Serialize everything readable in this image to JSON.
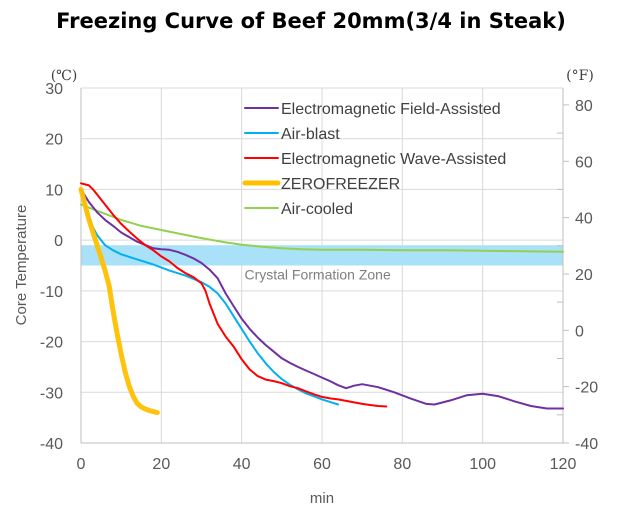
{
  "chart_data": {
    "type": "line",
    "title": "Freezing Curve of Beef 20mm(3/4 in Steak)",
    "xlabel": "min",
    "ylabel": "Core Temperature",
    "y_unit_left": "(℃)",
    "y_unit_right": "(°F)",
    "xlim": [
      0,
      120
    ],
    "ylim": [
      -40,
      30
    ],
    "y2lim": [
      -40,
      86
    ],
    "x_ticks": [
      "0",
      "20",
      "40",
      "60",
      "80",
      "100",
      "120"
    ],
    "x_tick_values": [
      0,
      20,
      40,
      60,
      80,
      100,
      120
    ],
    "y_ticks": [
      "30",
      "20",
      "10",
      "0",
      "-10",
      "-20",
      "-30",
      "-40"
    ],
    "y_tick_values": [
      30,
      20,
      10,
      0,
      -10,
      -20,
      -30,
      -40
    ],
    "y2_ticks": [
      "80",
      "60",
      "40",
      "20",
      "0",
      "-20",
      "-40"
    ],
    "y2_tick_values": [
      80,
      60,
      40,
      20,
      0,
      -20,
      -40
    ],
    "grid": true,
    "legend_position": "top-right",
    "annotation": {
      "label": "Crystal Formation Zone",
      "y_range": [
        -5,
        -1
      ],
      "color": "#a9e2f8"
    },
    "series": [
      {
        "name": "Electromagnetic Field-Assisted",
        "color": "#7030a0",
        "x": [
          0,
          2,
          4,
          6,
          8,
          10,
          14,
          18,
          20,
          22,
          24,
          26,
          28,
          30,
          32,
          34,
          36,
          38,
          40,
          42,
          44,
          46,
          48,
          50,
          52,
          54,
          56,
          58,
          60,
          62,
          64,
          66,
          68,
          70,
          74,
          78,
          82,
          86,
          88,
          92,
          96,
          100,
          104,
          108,
          112,
          116,
          120
        ],
        "y": [
          10,
          7.5,
          5.5,
          4,
          2.8,
          1.5,
          -0.3,
          -1.6,
          -1.8,
          -1.9,
          -2.3,
          -2.9,
          -3.6,
          -4.5,
          -5.8,
          -7.5,
          -10.5,
          -13,
          -15.5,
          -17.5,
          -19.2,
          -20.7,
          -22,
          -23.3,
          -24.2,
          -25,
          -25.7,
          -26.4,
          -27.1,
          -27.8,
          -28.6,
          -29.2,
          -28.7,
          -28.4,
          -29,
          -30,
          -31.2,
          -32.3,
          -32.4,
          -31.6,
          -30.6,
          -30.3,
          -30.8,
          -31.8,
          -32.7,
          -33.2,
          -33.2
        ]
      },
      {
        "name": "Air-blast",
        "color": "#00b0f0",
        "x": [
          0,
          1,
          2,
          3,
          4,
          5,
          6,
          8,
          10,
          14,
          18,
          22,
          26,
          30,
          32,
          34,
          36,
          38,
          40,
          42,
          44,
          46,
          48,
          50,
          52,
          54,
          56,
          58,
          60,
          62,
          64
        ],
        "y": [
          10,
          7,
          4.5,
          2.5,
          1,
          0,
          -1,
          -2,
          -2.8,
          -3.8,
          -4.8,
          -6,
          -7,
          -8.3,
          -9.2,
          -10.5,
          -12.5,
          -15,
          -17.5,
          -20,
          -22.3,
          -24.3,
          -26,
          -27.4,
          -28.5,
          -29.4,
          -30.2,
          -30.8,
          -31.4,
          -31.9,
          -32.4
        ]
      },
      {
        "name": "Electromagnetic Wave-Assisted",
        "color": "#ff0000",
        "x": [
          0,
          1,
          2,
          3,
          4,
          6,
          8,
          10,
          12,
          14,
          16,
          18,
          20,
          22,
          24,
          26,
          28,
          30,
          31,
          32,
          33,
          34,
          36,
          38,
          40,
          42,
          44,
          46,
          48,
          50,
          52,
          54,
          56,
          58,
          60,
          62,
          64,
          66,
          68,
          70,
          72,
          74,
          76
        ],
        "y": [
          11.2,
          11,
          10.8,
          10,
          9,
          7,
          5,
          3.2,
          1.7,
          0.3,
          -1,
          -2,
          -3.2,
          -4.2,
          -5.5,
          -6.5,
          -7.3,
          -8.5,
          -10,
          -12.5,
          -14.5,
          -16.5,
          -19,
          -21,
          -23.5,
          -25.5,
          -26.8,
          -27.5,
          -27.8,
          -28.2,
          -28.8,
          -29.2,
          -29.8,
          -30.4,
          -30.9,
          -31.2,
          -31.4,
          -31.7,
          -32,
          -32.3,
          -32.5,
          -32.7,
          -32.8
        ]
      },
      {
        "name": "ZEROFREEZER",
        "color": "#ffc000",
        "x": [
          0,
          0.5,
          1,
          1.5,
          2,
          3,
          4,
          5,
          6,
          7,
          8,
          9,
          10,
          11,
          12,
          13,
          14,
          15,
          16,
          17,
          18,
          19
        ],
        "y": [
          10,
          8.5,
          7,
          5.5,
          4,
          1.5,
          -1,
          -3.5,
          -6,
          -9,
          -14,
          -18.5,
          -22.5,
          -26,
          -28.8,
          -30.8,
          -32.2,
          -32.9,
          -33.3,
          -33.6,
          -33.8,
          -34
        ]
      },
      {
        "name": "Air-cooled",
        "color": "#92d050",
        "x": [
          0,
          5,
          10,
          15,
          20,
          25,
          30,
          35,
          40,
          45,
          50,
          55,
          60,
          65,
          70,
          80,
          90,
          100,
          110,
          120
        ],
        "y": [
          7,
          5.5,
          4,
          2.8,
          2,
          1.2,
          0.4,
          -0.3,
          -0.9,
          -1.3,
          -1.6,
          -1.8,
          -1.9,
          -1.9,
          -1.9,
          -2,
          -2,
          -2.1,
          -2.2,
          -2.3
        ]
      }
    ]
  }
}
